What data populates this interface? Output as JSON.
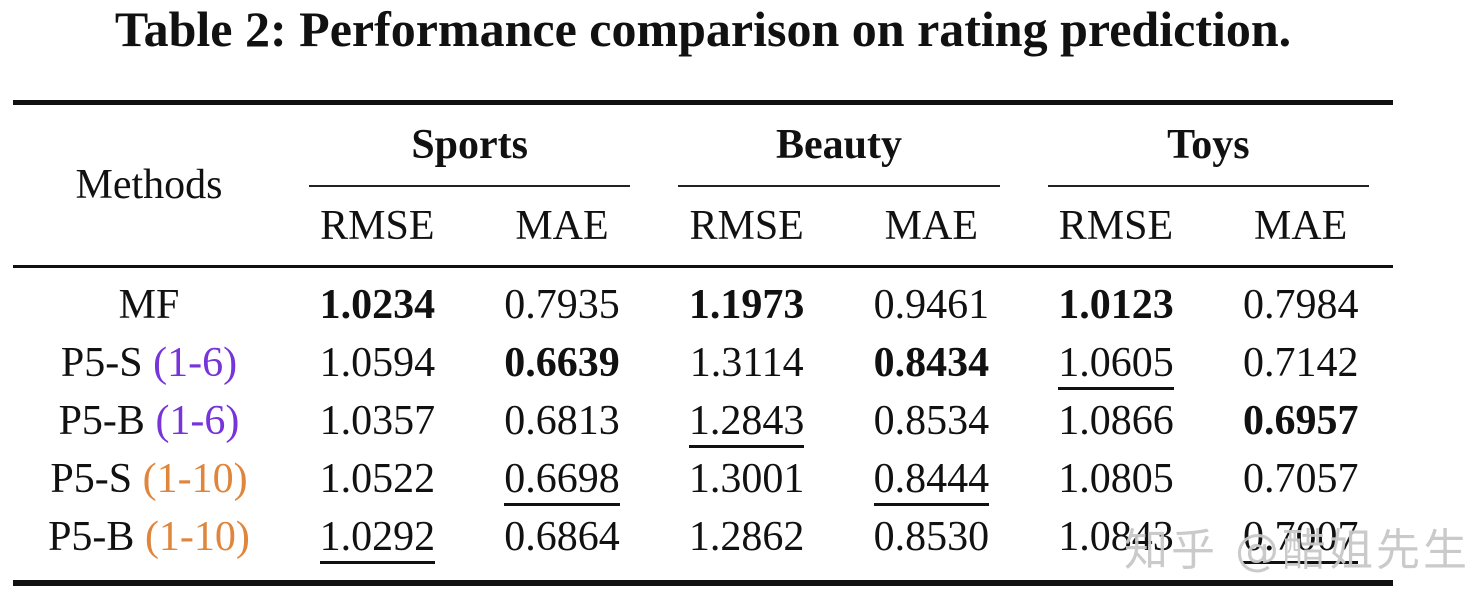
{
  "title": "Table 2: Performance comparison on rating prediction.",
  "watermark": "知乎 @醋姐先生",
  "colors": {
    "text": "#111111",
    "range_1_6_purple": "#7634D9",
    "range_1_10_orange": "#E0853C",
    "watermark_gray": "#c8c8c8"
  },
  "table": {
    "methods_header": "Methods",
    "groups": [
      {
        "label": "Sports"
      },
      {
        "label": "Beauty"
      },
      {
        "label": "Toys"
      }
    ],
    "subheaders": [
      "RMSE",
      "MAE"
    ],
    "emphasis_legend": {
      "best": "bold",
      "second": "underline"
    },
    "rows": [
      {
        "method": "MF",
        "range": "",
        "range_class": "",
        "cells": [
          {
            "v": "1.0234",
            "emph": "best"
          },
          {
            "v": "0.7935",
            "emph": ""
          },
          {
            "v": "1.1973",
            "emph": "best"
          },
          {
            "v": "0.9461",
            "emph": ""
          },
          {
            "v": "1.0123",
            "emph": "best"
          },
          {
            "v": "0.7984",
            "emph": ""
          }
        ]
      },
      {
        "method": "P5-S",
        "range": "(1-6)",
        "range_class": "purple",
        "cells": [
          {
            "v": "1.0594",
            "emph": ""
          },
          {
            "v": "0.6639",
            "emph": "best"
          },
          {
            "v": "1.3114",
            "emph": ""
          },
          {
            "v": "0.8434",
            "emph": "best"
          },
          {
            "v": "1.0605",
            "emph": "second"
          },
          {
            "v": "0.7142",
            "emph": ""
          }
        ]
      },
      {
        "method": "P5-B",
        "range": "(1-6)",
        "range_class": "purple",
        "cells": [
          {
            "v": "1.0357",
            "emph": ""
          },
          {
            "v": "0.6813",
            "emph": ""
          },
          {
            "v": "1.2843",
            "emph": "second"
          },
          {
            "v": "0.8534",
            "emph": ""
          },
          {
            "v": "1.0866",
            "emph": ""
          },
          {
            "v": "0.6957",
            "emph": "best"
          }
        ]
      },
      {
        "method": "P5-S",
        "range": "(1-10)",
        "range_class": "orange",
        "cells": [
          {
            "v": "1.0522",
            "emph": ""
          },
          {
            "v": "0.6698",
            "emph": "second"
          },
          {
            "v": "1.3001",
            "emph": ""
          },
          {
            "v": "0.8444",
            "emph": "second"
          },
          {
            "v": "1.0805",
            "emph": ""
          },
          {
            "v": "0.7057",
            "emph": ""
          }
        ]
      },
      {
        "method": "P5-B",
        "range": "(1-10)",
        "range_class": "orange",
        "cells": [
          {
            "v": "1.0292",
            "emph": "second"
          },
          {
            "v": "0.6864",
            "emph": ""
          },
          {
            "v": "1.2862",
            "emph": ""
          },
          {
            "v": "0.8530",
            "emph": ""
          },
          {
            "v": "1.0843",
            "emph": ""
          },
          {
            "v": "0.7007",
            "emph": "second"
          }
        ]
      }
    ]
  }
}
